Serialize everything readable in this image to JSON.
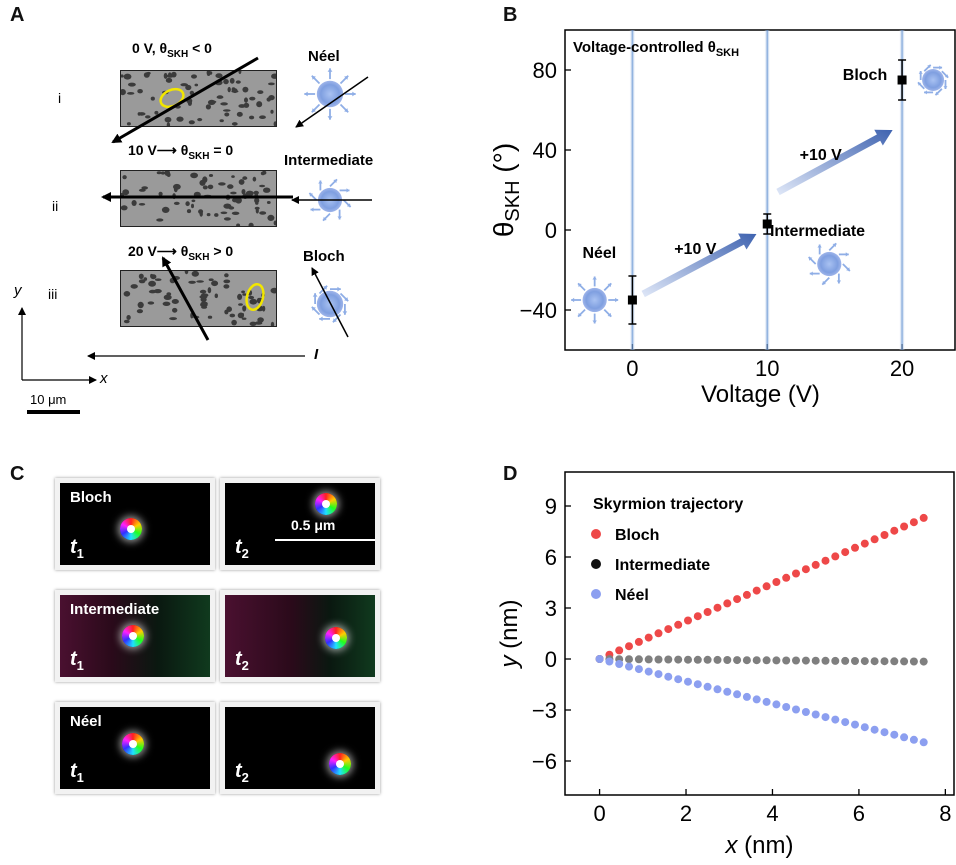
{
  "panels": {
    "a": "A",
    "b": "B",
    "c": "C",
    "d": "D"
  },
  "panel_a": {
    "row_i": "i",
    "row_ii": "ii",
    "row_iii": "iii",
    "cond_i": "0 V, θSKH < 0",
    "cond_ii": "10 V⟶ θSKH = 0",
    "cond_iii": "20 V⟶ θSKH > 0",
    "type_i": "Néel",
    "type_ii": "Intermediate",
    "type_iii": "Bloch",
    "axis_y": "y",
    "axis_x": "x",
    "current": "I",
    "scalebar": "10 μm"
  },
  "panel_c": {
    "rows": [
      "Bloch",
      "Intermediate",
      "Néel"
    ],
    "t1": "t",
    "t2": "t",
    "t1_sub": "1",
    "t2_sub": "2",
    "scalebar": "0.5 μm"
  },
  "colors": {
    "bloch": "#ee4848",
    "intermediate": "#7f7f7f",
    "neel": "#8c9ff0",
    "skyrmion": "#8faee6",
    "arrow": "#3f63b0",
    "ellipse": "#f2e600"
  },
  "chart_data": [
    {
      "panel": "B",
      "type": "scatter",
      "title": "Voltage-controlled θSKH",
      "xlabel": "Voltage (V)",
      "ylabel": "θSKH (°)",
      "xlim": [
        -5,
        24
      ],
      "ylim": [
        -60,
        100
      ],
      "xticks": [
        0,
        10,
        20
      ],
      "yticks": [
        -40,
        0,
        40,
        80
      ],
      "x": [
        0,
        10,
        20
      ],
      "y": [
        -35,
        3,
        75
      ],
      "yerr": [
        12,
        5,
        10
      ],
      "point_labels": [
        "Néel",
        "Intermediate",
        "Bloch"
      ],
      "annotations": [
        "+10 V",
        "+10 V"
      ],
      "legend": "none",
      "grid": false
    },
    {
      "panel": "D",
      "type": "scatter",
      "title": "Skyrmion trajectory",
      "xlabel": "x (nm)",
      "ylabel": "y (nm)",
      "xlim": [
        -0.8,
        8.2
      ],
      "ylim": [
        -8,
        11
      ],
      "xticks": [
        0,
        2,
        4,
        6,
        8
      ],
      "yticks": [
        -6,
        -3,
        0,
        3,
        6,
        9
      ],
      "legend": "top-left",
      "grid": false,
      "series": [
        {
          "name": "Bloch",
          "color": "#ee4848",
          "x_start": 0,
          "x_end": 7.5,
          "y_start": 0,
          "y_end": 8.3,
          "points": 34
        },
        {
          "name": "Intermediate",
          "color": "#7f7f7f",
          "x_start": 0,
          "x_end": 7.5,
          "y_start": 0,
          "y_end": -0.15,
          "points": 34
        },
        {
          "name": "Néel",
          "color": "#8c9ff0",
          "x_start": 0,
          "x_end": 7.5,
          "y_start": 0,
          "y_end": -4.9,
          "points": 34
        }
      ]
    }
  ]
}
